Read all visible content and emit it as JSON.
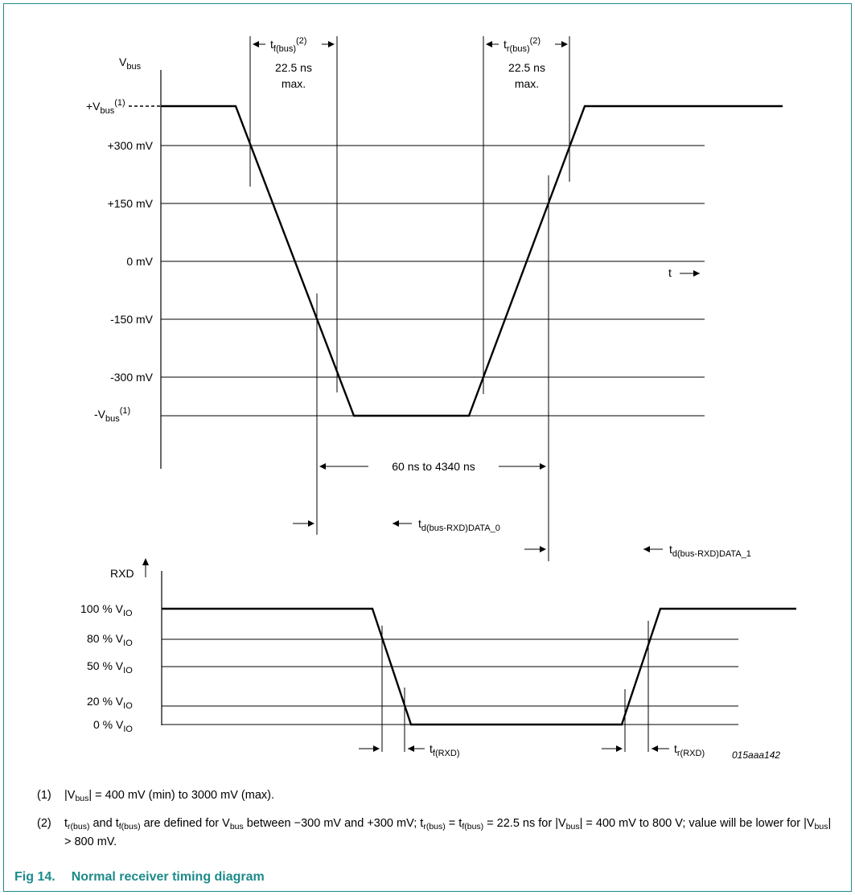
{
  "upper": {
    "axis_label": "V",
    "axis_label_sub": "bus",
    "levels": [
      {
        "key": "vplus",
        "text": "+V",
        "sub": "bus",
        "sup": "(1)"
      },
      {
        "key": "p300",
        "text": "+300 mV"
      },
      {
        "key": "p150",
        "text": "+150 mV"
      },
      {
        "key": "zero",
        "text": "0 mV"
      },
      {
        "key": "m150",
        "text": "-150 mV"
      },
      {
        "key": "m300",
        "text": "-300 mV"
      },
      {
        "key": "vminus",
        "text": "-V",
        "sub": "bus",
        "sup": "(1)"
      }
    ],
    "t_label": "t",
    "fall_label": {
      "text": "t",
      "sub": "f(bus)",
      "sup": "(2)",
      "value": "22.5 ns",
      "note": "max."
    },
    "rise_label": {
      "text": "t",
      "sub": "r(bus)",
      "sup": "(2)",
      "value": "22.5 ns",
      "note": "max."
    },
    "duration_label": "60 ns to 4340 ns"
  },
  "delays": {
    "data0": {
      "text": "t",
      "sub": "d(bus-RXD)DATA_0"
    },
    "data1": {
      "text": "t",
      "sub": "d(bus-RXD)DATA_1"
    }
  },
  "lower": {
    "axis_label": "RXD",
    "levels": [
      {
        "key": "l100",
        "text": "100 % V",
        "sub": "IO"
      },
      {
        "key": "l80",
        "text": "80 % V",
        "sub": "IO"
      },
      {
        "key": "l50",
        "text": "50 % V",
        "sub": "IO"
      },
      {
        "key": "l20",
        "text": "20 % V",
        "sub": "IO"
      },
      {
        "key": "l0",
        "text": "0 % V",
        "sub": "IO"
      }
    ],
    "fall_label": {
      "text": "t",
      "sub": "f(RXD)"
    },
    "rise_label": {
      "text": "t",
      "sub": "r(RXD)"
    },
    "figure_code": "015aaa142"
  },
  "notes": [
    {
      "num": "(1)",
      "a": "|V",
      "a_sub": "bus",
      "b": "| = 400 mV (min) to 3000 mV (max)."
    },
    {
      "num": "(2)"
    }
  ],
  "caption": {
    "label": "Fig 14.",
    "title": "Normal receiver timing diagram"
  },
  "colors": {
    "accent": "#1e8a8a"
  }
}
